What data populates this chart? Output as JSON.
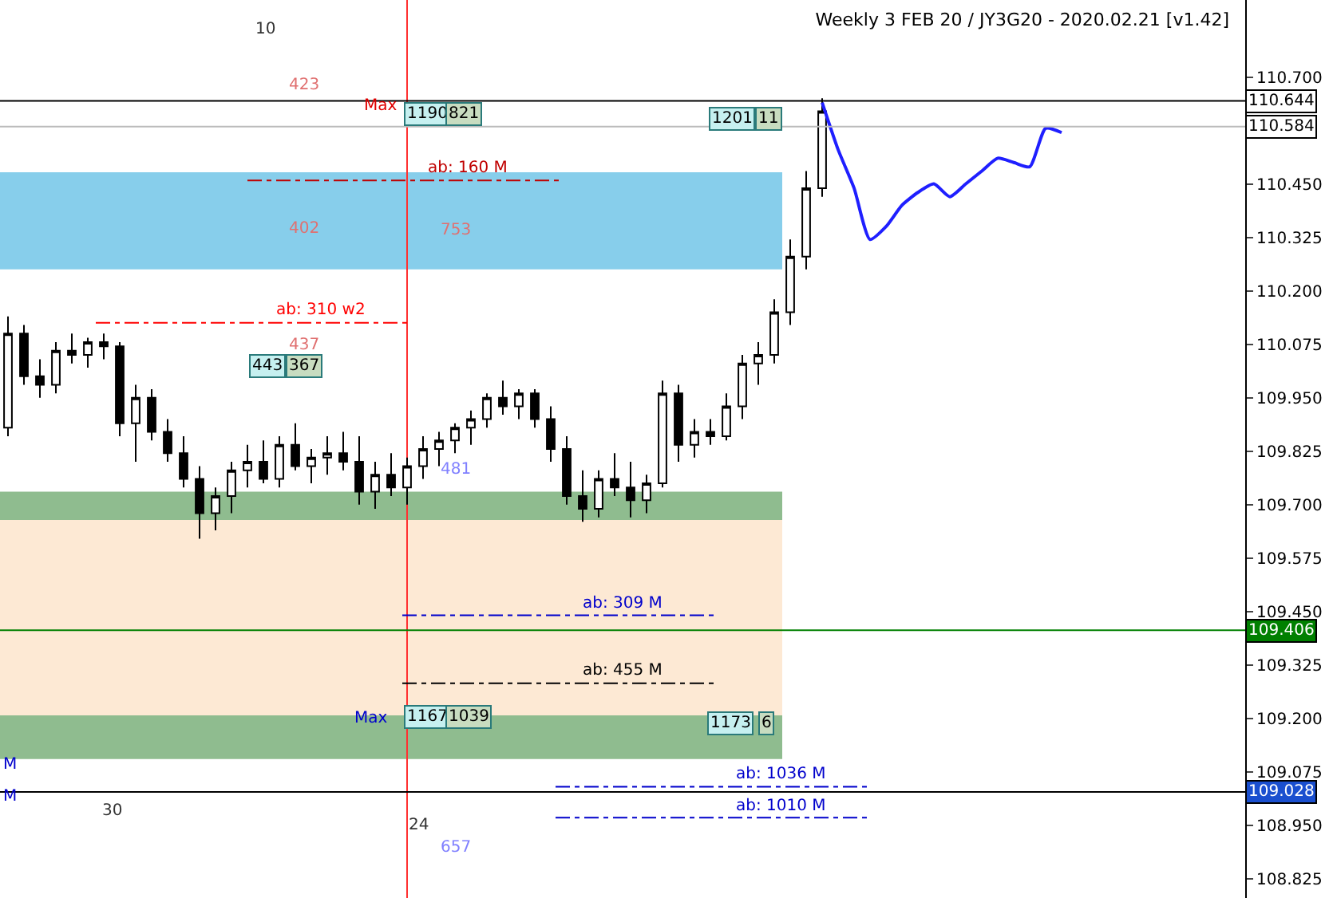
{
  "chart_data": {
    "type": "candlestick",
    "title": "Weekly 3 FEB 20 / JY3G20 - 2020.02.21 [v1.42]",
    "categories": [
      null,
      null,
      null,
      null,
      null,
      null,
      null,
      null,
      null,
      null,
      null,
      null,
      null,
      null,
      null,
      null,
      null,
      null,
      null,
      null,
      null,
      null,
      null,
      null,
      null,
      null,
      null,
      null,
      null,
      null,
      null,
      null,
      null,
      null,
      null,
      null,
      null,
      null,
      null,
      null,
      null,
      null,
      null,
      null,
      null,
      null,
      null,
      null,
      null,
      null,
      null,
      null,
      null,
      null,
      null,
      null,
      null,
      null,
      null,
      null,
      null,
      null,
      null,
      null,
      null,
      null,
      null,
      null,
      null,
      null,
      null,
      null,
      null,
      null,
      null,
      null,
      null,
      null
    ],
    "ohlc": [
      [
        109.88,
        110.14,
        109.86,
        110.1
      ],
      [
        110.1,
        110.12,
        109.98,
        110.0
      ],
      [
        110.0,
        110.04,
        109.95,
        109.98
      ],
      [
        109.98,
        110.08,
        109.96,
        110.06
      ],
      [
        110.06,
        110.1,
        110.03,
        110.05
      ],
      [
        110.05,
        110.09,
        110.02,
        110.08
      ],
      [
        110.08,
        110.1,
        110.04,
        110.07
      ],
      [
        110.07,
        110.08,
        109.86,
        109.89
      ],
      [
        109.89,
        109.98,
        109.8,
        109.95
      ],
      [
        109.95,
        109.97,
        109.85,
        109.87
      ],
      [
        109.87,
        109.9,
        109.8,
        109.82
      ],
      [
        109.82,
        109.86,
        109.74,
        109.76
      ],
      [
        109.76,
        109.79,
        109.62,
        109.68
      ],
      [
        109.68,
        109.74,
        109.64,
        109.72
      ],
      [
        109.72,
        109.8,
        109.68,
        109.78
      ],
      [
        109.78,
        109.84,
        109.74,
        109.8
      ],
      [
        109.8,
        109.85,
        109.75,
        109.76
      ],
      [
        109.76,
        109.86,
        109.74,
        109.84
      ],
      [
        109.84,
        109.89,
        109.78,
        109.79
      ],
      [
        109.79,
        109.83,
        109.75,
        109.81
      ],
      [
        109.81,
        109.86,
        109.77,
        109.82
      ],
      [
        109.82,
        109.87,
        109.78,
        109.8
      ],
      [
        109.8,
        109.86,
        109.7,
        109.73
      ],
      [
        109.73,
        109.8,
        109.69,
        109.77
      ],
      [
        109.77,
        109.82,
        109.72,
        109.74
      ],
      [
        109.74,
        109.81,
        109.7,
        109.79
      ],
      [
        109.79,
        109.86,
        109.76,
        109.83
      ],
      [
        109.83,
        109.87,
        109.79,
        109.85
      ],
      [
        109.85,
        109.89,
        109.82,
        109.88
      ],
      [
        109.88,
        109.92,
        109.84,
        109.9
      ],
      [
        109.9,
        109.96,
        109.88,
        109.95
      ],
      [
        109.95,
        109.99,
        109.91,
        109.93
      ],
      [
        109.93,
        109.97,
        109.9,
        109.96
      ],
      [
        109.96,
        109.97,
        109.88,
        109.9
      ],
      [
        109.9,
        109.93,
        109.8,
        109.83
      ],
      [
        109.83,
        109.86,
        109.7,
        109.72
      ],
      [
        109.72,
        109.78,
        109.66,
        109.69
      ],
      [
        109.69,
        109.78,
        109.67,
        109.76
      ],
      [
        109.76,
        109.82,
        109.72,
        109.74
      ],
      [
        109.74,
        109.8,
        109.67,
        109.71
      ],
      [
        109.71,
        109.77,
        109.68,
        109.75
      ],
      [
        109.75,
        109.99,
        109.74,
        109.96
      ],
      [
        109.96,
        109.98,
        109.8,
        109.84
      ],
      [
        109.84,
        109.9,
        109.81,
        109.87
      ],
      [
        109.87,
        109.9,
        109.84,
        109.86
      ],
      [
        109.86,
        109.96,
        109.85,
        109.93
      ],
      [
        109.93,
        110.05,
        109.9,
        110.03
      ],
      [
        110.03,
        110.08,
        109.98,
        110.05
      ],
      [
        110.05,
        110.18,
        110.03,
        110.15
      ],
      [
        110.15,
        110.32,
        110.12,
        110.28
      ],
      [
        110.28,
        110.48,
        110.25,
        110.44
      ],
      [
        110.44,
        110.65,
        110.42,
        110.62
      ],
      null,
      null,
      null,
      null,
      null,
      null,
      null,
      null,
      null,
      null,
      null,
      null,
      null,
      null,
      null,
      null,
      null,
      null,
      null,
      null,
      null,
      null,
      null,
      null,
      null,
      null
    ],
    "series": [
      {
        "type": "line",
        "color": "#1f1fff",
        "values": [
          null,
          null,
          null,
          null,
          null,
          null,
          null,
          null,
          null,
          null,
          null,
          null,
          null,
          null,
          null,
          null,
          null,
          null,
          null,
          null,
          null,
          null,
          null,
          null,
          null,
          null,
          null,
          null,
          null,
          null,
          null,
          null,
          null,
          null,
          null,
          null,
          null,
          null,
          null,
          null,
          null,
          null,
          null,
          null,
          null,
          null,
          null,
          null,
          null,
          null,
          null,
          110.64,
          110.53,
          110.44,
          110.32,
          110.35,
          110.4,
          110.43,
          110.45,
          110.42,
          110.45,
          110.48,
          110.51,
          110.5,
          110.49,
          110.58,
          110.57,
          null,
          null,
          null,
          null,
          null,
          null,
          null,
          null,
          null,
          null,
          null
        ]
      }
    ],
    "ylim": [
      108.78,
      110.88
    ],
    "yticks": [
      {
        "value": 110.7,
        "label": "110.700"
      },
      {
        "value": 110.45,
        "label": "110.450"
      },
      110.325,
      {
        "value": 110.2,
        "label": "110.200"
      },
      110.075,
      {
        "value": 109.95,
        "label": "109.950"
      },
      109.825,
      {
        "value": 109.7,
        "label": "109.700"
      },
      109.575,
      {
        "value": 109.45,
        "label": "109.450"
      },
      109.325,
      {
        "value": 109.2,
        "label": "109.200"
      },
      109.075,
      {
        "value": 108.95,
        "label": "108.950"
      },
      108.825
    ],
    "tick_labels": "y",
    "bands": [
      {
        "axis": "y",
        "from": 110.25,
        "to": 110.477,
        "color": "#87ceeb"
      },
      {
        "axis": "y",
        "from": 109.664,
        "to": 109.73,
        "color": "#8fbc8f"
      },
      {
        "axis": "y",
        "from": 109.207,
        "to": 109.664,
        "color": "#fde9d4"
      },
      {
        "axis": "y",
        "from": 109.105,
        "to": 109.207,
        "color": "#8fbc8f"
      }
    ],
    "ref_lines": [
      {
        "axis": "y",
        "value": 110.458,
        "color": "#c00000",
        "line_style": "dashed"
      },
      {
        "axis": "y",
        "value": 110.125,
        "color": "#ff0000",
        "line_style": "dashed"
      },
      {
        "axis": "y",
        "value": 109.441,
        "color": "#0000cc",
        "line_style": "dashed"
      },
      {
        "axis": "y",
        "value": 109.282,
        "color": "#000000",
        "line_style": "dashed"
      },
      {
        "axis": "y",
        "value": 109.04,
        "color": "#0000cc",
        "line_style": "dashed"
      },
      {
        "axis": "y",
        "value": 108.968,
        "color": "#0000cc",
        "line_style": "dashed"
      },
      {
        "axis": "y",
        "value": 110.644,
        "label": "110.644",
        "color": "#000000",
        "line_style": "solid"
      },
      {
        "axis": "y",
        "value": 110.584,
        "label": "110.584",
        "color": "#bbbbbb",
        "line_style": "solid"
      },
      {
        "axis": "y",
        "value": 109.406,
        "label": "109.406",
        "color": "#008000",
        "line_style": "solid"
      },
      {
        "axis": "y",
        "value": 109.028,
        "label": "109.028",
        "color": "#000000",
        "line_style": "solid"
      }
    ],
    "annotations": [
      {
        "text": "ab: 160 M",
        "y": 110.458
      },
      {
        "text": "ab: 310 w2",
        "y": 110.125
      },
      {
        "text": "ab: 309 M",
        "y": 109.441
      },
      {
        "text": "ab: 455 M",
        "y": 109.282
      },
      {
        "text": "ab: 1036 M",
        "y": 109.04
      },
      {
        "text": "ab: 1010 M",
        "y": 108.968
      },
      "10",
      "423",
      "Max",
      "1190",
      "821",
      "1201",
      "11",
      "402",
      "753",
      "437",
      "443",
      "367",
      "481",
      "Max",
      "1167",
      "1039",
      "1173",
      "6",
      "M",
      "M",
      "30",
      "24",
      "657"
    ]
  }
}
